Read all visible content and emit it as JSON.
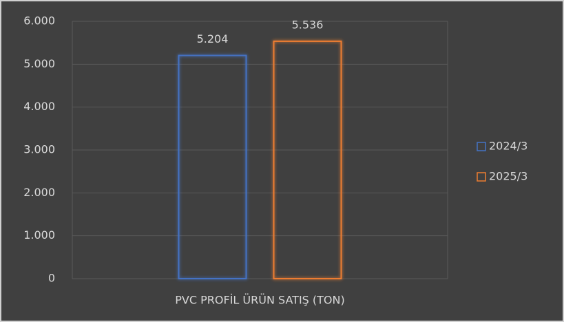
{
  "chart_data": {
    "type": "bar",
    "categories": [
      "PVC PROFİL ÜRÜN SATIŞ (TON)"
    ],
    "series": [
      {
        "name": "2024/3",
        "color": "#4472c4",
        "values": [
          5204
        ],
        "value_labels": [
          "5.204"
        ]
      },
      {
        "name": "2025/3",
        "color": "#ed7d31",
        "values": [
          5536
        ],
        "value_labels": [
          "5.536"
        ]
      }
    ],
    "ylim": [
      0,
      6000
    ],
    "yticks": [
      0,
      {
        "value": 1000,
        "label": "1.000"
      },
      {
        "value": 2000,
        "label": "2.000"
      },
      {
        "value": 3000,
        "label": "3.000"
      },
      {
        "value": 4000,
        "label": "4.000"
      },
      {
        "value": 5000,
        "label": "5.000"
      },
      {
        "value": 6000,
        "label": "6.000"
      }
    ],
    "grid": true,
    "legend": "right"
  }
}
